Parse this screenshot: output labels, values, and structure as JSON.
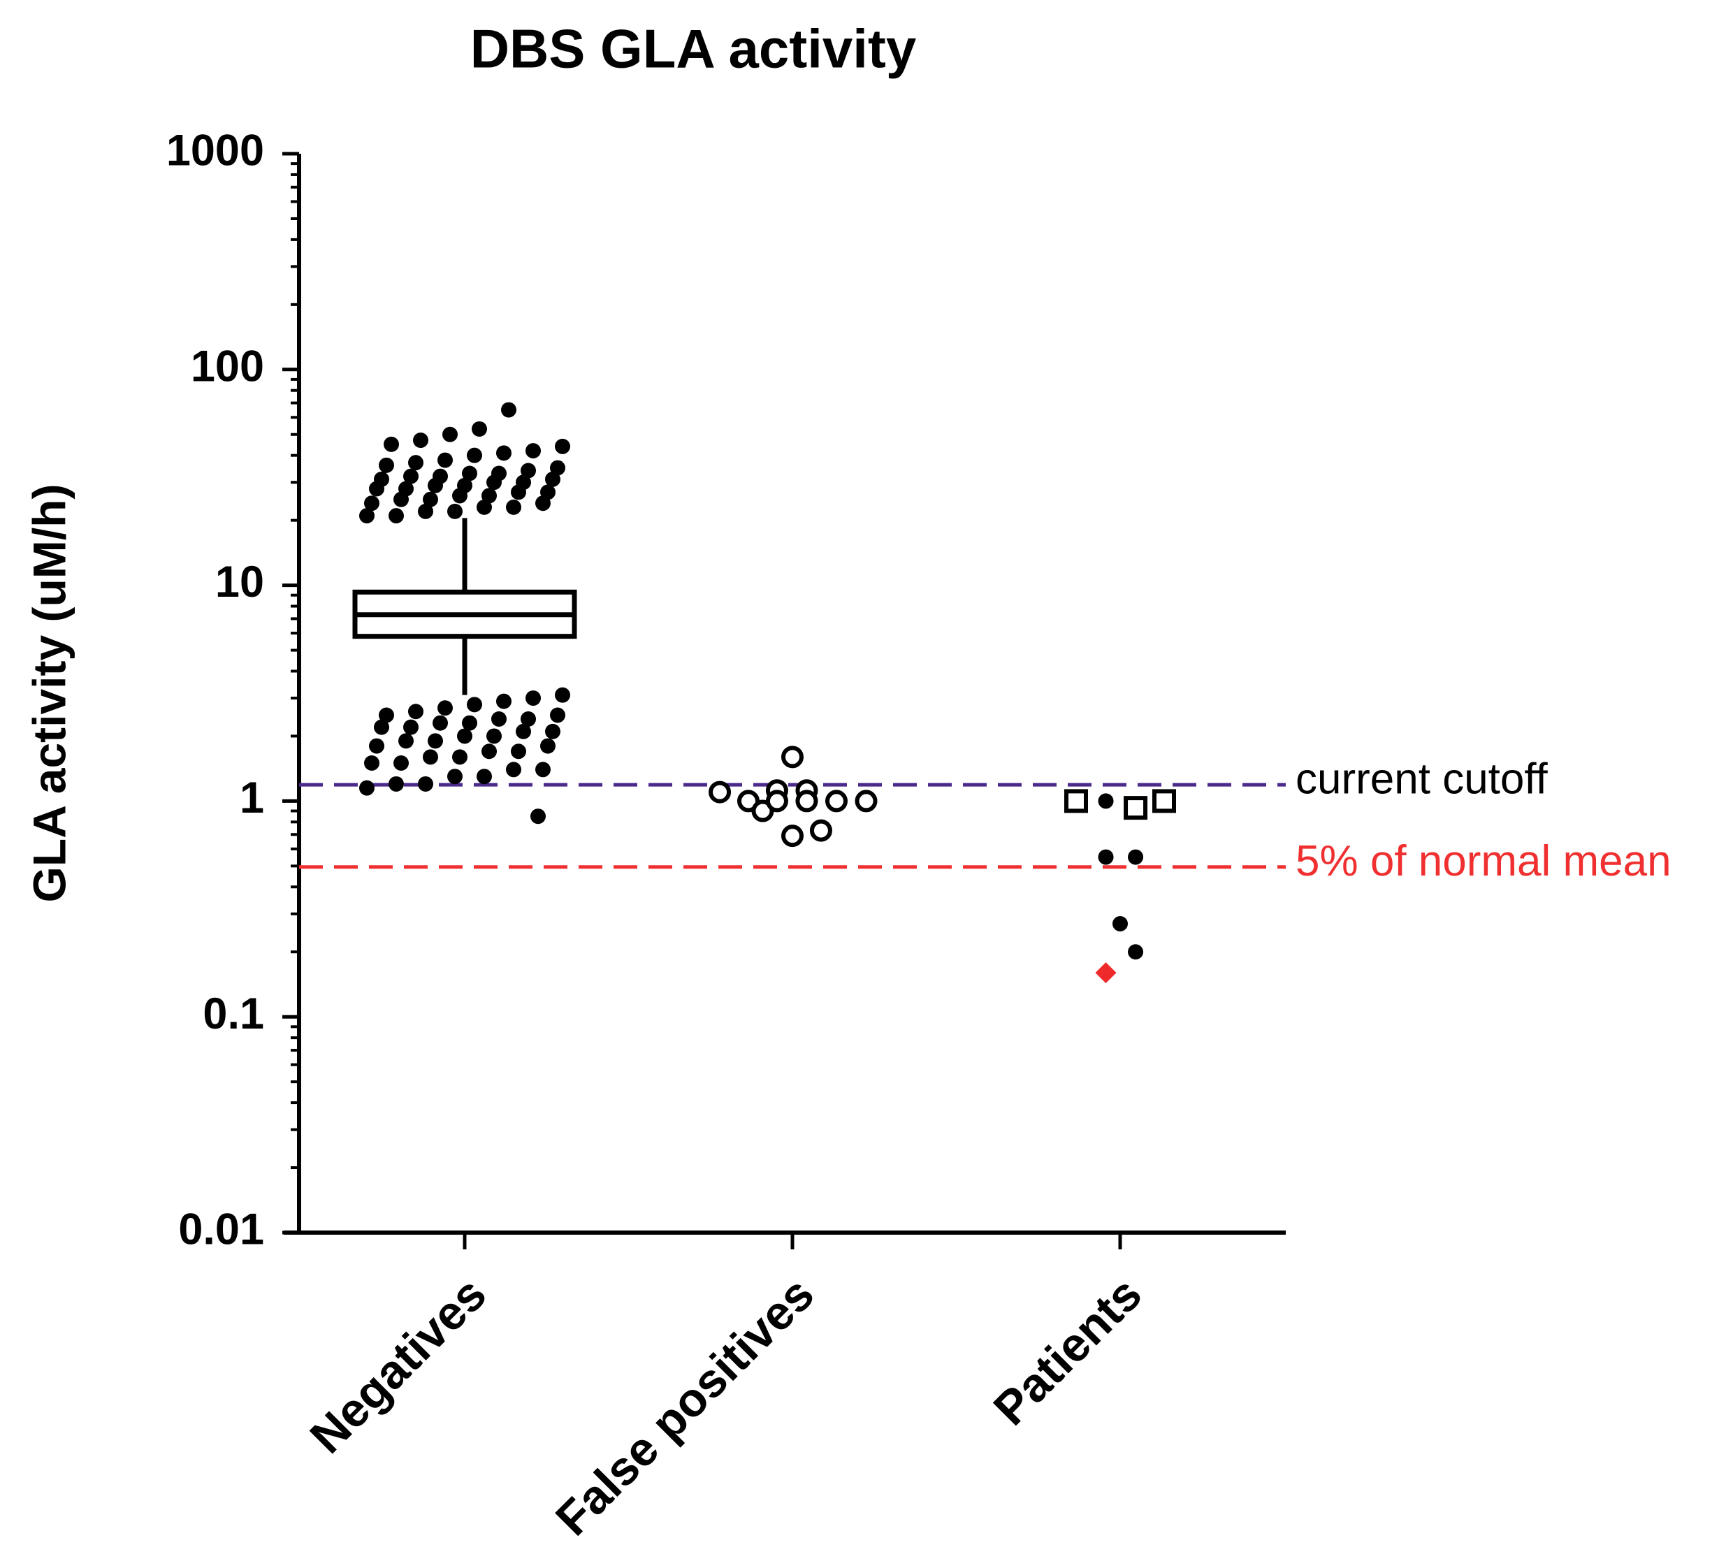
{
  "chart_data": {
    "type": "box_scatter",
    "title": "DBS GLA activity",
    "ylabel": "GLA activity (uM/h)",
    "log_scale": true,
    "minor_ticks": true,
    "categories": [
      "Negatives",
      "False positives",
      "Patients"
    ],
    "ylim": [
      0.01,
      1000
    ],
    "yticks": [
      0.01,
      0.1,
      1,
      10,
      100,
      1000
    ],
    "box": {
      "category": 0,
      "whisker_low": 3.1,
      "q1": 5.8,
      "median": 7.3,
      "q3": 9.3,
      "whisker_high": 20.5
    },
    "series": [
      {
        "category": 0,
        "marker": "dot",
        "color": "#000000",
        "values": [
          21,
          21,
          22,
          22,
          23,
          23,
          24,
          24,
          25,
          25,
          26,
          26,
          27,
          27,
          28,
          28,
          29,
          29,
          30,
          30,
          31,
          31,
          32,
          32,
          33,
          33,
          34,
          35,
          36,
          37,
          38,
          40,
          41,
          42,
          44,
          45,
          47,
          50,
          53,
          65,
          0.85,
          1.15,
          1.2,
          1.2,
          1.3,
          1.3,
          1.4,
          1.4,
          1.5,
          1.5,
          1.6,
          1.6,
          1.7,
          1.7,
          1.8,
          1.8,
          1.9,
          1.9,
          2.0,
          2.0,
          2.1,
          2.1,
          2.2,
          2.2,
          2.3,
          2.3,
          2.4,
          2.4,
          2.5,
          2.5,
          2.6,
          2.7,
          2.8,
          2.9,
          3.0,
          3.1
        ]
      },
      {
        "category": 1,
        "marker": "circle",
        "color": "#000000",
        "values": [
          1.1,
          1.0,
          0.9,
          1.12,
          1.0,
          1.6,
          1.12,
          1.0,
          1.0,
          1.0,
          0.69,
          0.73
        ]
      },
      {
        "category": 2,
        "marker": "square",
        "color": "#000000",
        "values": [
          1.0,
          0.93,
          1.0
        ]
      },
      {
        "category": 2,
        "marker": "dot",
        "color": "#000000",
        "values": [
          1.0,
          0.55,
          0.55,
          0.27,
          0.2
        ]
      },
      {
        "category": 2,
        "marker": "diamond",
        "color": "#ee2a2a",
        "values": [
          0.16
        ]
      }
    ],
    "reference_lines": [
      {
        "value": 1.19,
        "label": "current cutoff",
        "color": "#4b2a8c"
      },
      {
        "value": 0.495,
        "label": "5% of normal mean",
        "color": "#f03030"
      }
    ]
  }
}
